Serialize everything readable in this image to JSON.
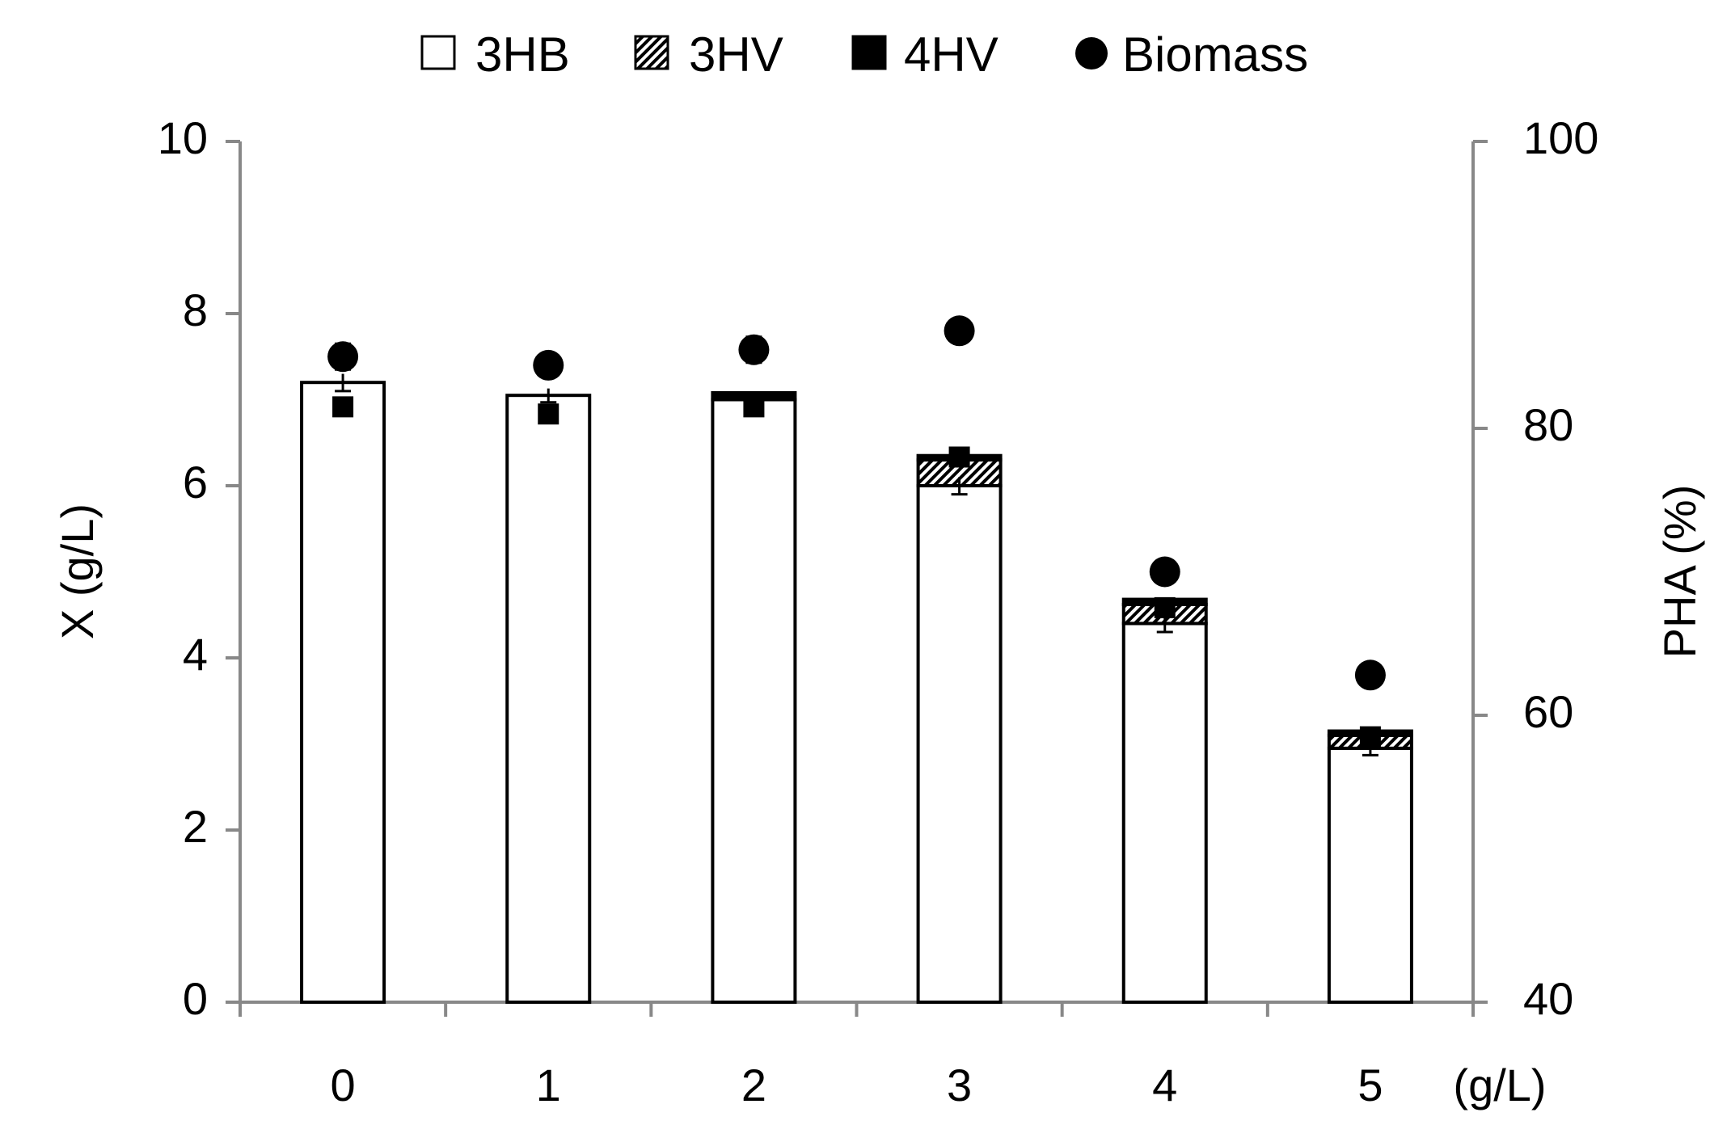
{
  "chart_data": {
    "type": "bar",
    "stacked": true,
    "categories": [
      "0",
      "1",
      "2",
      "3",
      "4",
      "5"
    ],
    "x_unit_label": "(g/L)",
    "ylabel_left": "X (g/L)",
    "ylabel_right": "PHA (%)",
    "ylim_left": [
      0,
      10
    ],
    "yticks_left": [
      "0",
      "2",
      "4",
      "6",
      "8",
      "10"
    ],
    "ylim_right": [
      40,
      100
    ],
    "yticks_right": [
      "40",
      "60",
      "80",
      "100"
    ],
    "grid": false,
    "legend_position": "top-center",
    "series": [
      {
        "name": "3HB",
        "axis": "left",
        "kind": "bar",
        "fill": "white",
        "values": [
          7.2,
          7.05,
          7.0,
          6.0,
          4.4,
          2.95
        ],
        "errors": [
          0.1,
          0.08,
          0.08,
          0.1,
          0.1,
          0.08
        ]
      },
      {
        "name": "3HV",
        "axis": "left",
        "kind": "bar",
        "fill": "hatched",
        "values": [
          0.0,
          0.0,
          0.0,
          0.3,
          0.22,
          0.15
        ],
        "errors": [
          0,
          0,
          0,
          0,
          0,
          0
        ]
      },
      {
        "name": "4HV",
        "axis": "left",
        "kind": "bar",
        "fill": "black",
        "values": [
          0.0,
          0.0,
          0.08,
          0.05,
          0.06,
          0.05
        ],
        "errors": [
          0,
          0,
          0,
          0,
          0,
          0
        ]
      },
      {
        "name": "Biomass",
        "axis": "left",
        "kind": "point",
        "values": [
          7.5,
          7.4,
          7.58,
          7.8,
          5.0,
          3.8
        ],
        "errors": [
          0.15,
          0.12,
          0.15,
          0.1,
          0,
          0
        ]
      },
      {
        "name": "PHA",
        "axis": "right",
        "kind": "point",
        "values": [
          81.5,
          81.0,
          81.5,
          78.0,
          67.5,
          58.5
        ],
        "errors": [
          0.6,
          0.5,
          0.5,
          0.6,
          0.5,
          0.5
        ]
      }
    ]
  }
}
